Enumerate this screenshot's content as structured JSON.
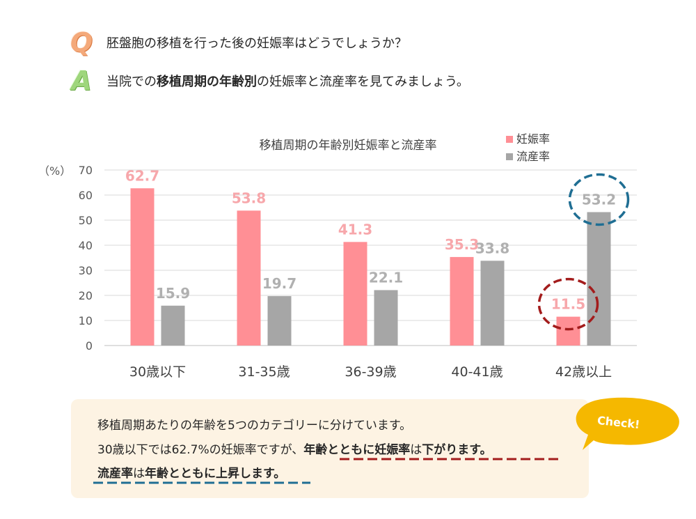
{
  "qa": {
    "q_letter": "Q",
    "question": "胚盤胞の移植を行った後の妊娠率はどうでしょうか？",
    "a_letter": "A",
    "answer_pre": "当院での",
    "answer_bold1": "移植周期の年齢別",
    "answer_post": "の妊娠率と流産率を見てみましょう。"
  },
  "chart_data": {
    "type": "bar",
    "title": "移植周期の年齢別妊娠率と流産率",
    "ylabel": "（%）",
    "ylim": [
      0,
      70
    ],
    "yticks": [
      0,
      10,
      20,
      30,
      40,
      50,
      60,
      70
    ],
    "categories": [
      "30歳以下",
      "31-35歳",
      "36-39歳",
      "40-41歳",
      "42歳以上"
    ],
    "series": [
      {
        "name": "妊娠率",
        "color": "#ff8f95",
        "label_color": "#f7a7ab",
        "values": [
          62.7,
          53.8,
          41.3,
          35.3,
          11.5
        ]
      },
      {
        "name": "流産率",
        "color": "#a6a6a6",
        "label_color": "#b0b0b0",
        "values": [
          15.9,
          19.7,
          22.1,
          33.8,
          53.2
        ]
      }
    ],
    "legend": "top-right",
    "grid": true,
    "highlights": [
      {
        "series": 0,
        "category": 4,
        "color": "#a31c1c"
      },
      {
        "series": 1,
        "category": 4,
        "color": "#1f6e93"
      }
    ]
  },
  "callout": {
    "line1": "移植周期あたりの年齢を5つのカテゴリーに分けています。",
    "line2_pre": "30歳以下では62.7%の妊娠率ですが、",
    "line2_b1": "年齢とともに妊娠率",
    "line2_mid": "は",
    "line2_b2": "下がります。",
    "line3_b1": "流産率",
    "line3_mid": "は",
    "line3_b2": "年齢とともに上昇します。",
    "badge": "Check!",
    "badge_color": "#f5b800",
    "underline_red": "#a31c1c",
    "underline_blue": "#1f6e93"
  }
}
